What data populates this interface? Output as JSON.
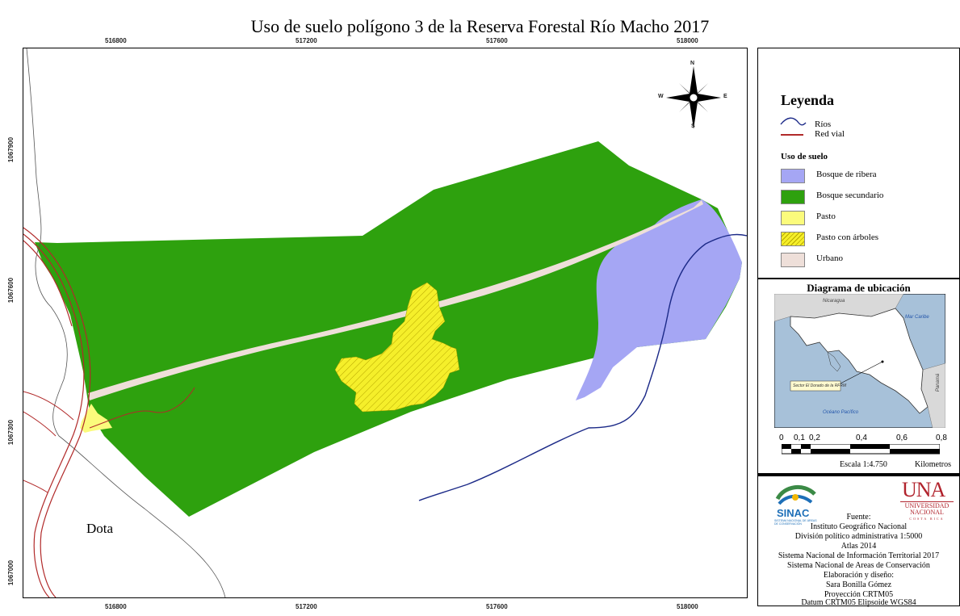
{
  "title": "Uso de suelo polígono 3 de la Reserva Forestal Río Macho 2017",
  "axes": {
    "x_ticks": [
      "516800",
      "517200",
      "517600",
      "518000"
    ],
    "y_ticks": [
      "1067900",
      "1067600",
      "1067300",
      "1067000"
    ]
  },
  "compass": {
    "n": "N",
    "s": "S",
    "e": "E",
    "w": "W"
  },
  "map_label": "Dota",
  "colors": {
    "bosque_de_ribera": "#a5a6f4",
    "bosque_secundario": "#2ea10e",
    "pasto": "#fbfb7c",
    "pasto_con_arboles": "#f5ef2a",
    "urbano": "#eedfd9",
    "rios": "#1c2a88",
    "red_vial": "#b12a2a"
  },
  "legend": {
    "title": "Leyenda",
    "rios": "Ríos",
    "red_vial": "Red vial",
    "uso_title": "Uso de suelo",
    "items": [
      {
        "label": "Bosque de ribera",
        "color": "#a5a6f4"
      },
      {
        "label": "Bosque secundario",
        "color": "#2ea10e"
      },
      {
        "label": "Pasto",
        "color": "#fbfb7c"
      },
      {
        "label": "Pasto con árboles",
        "color": "#f5ef2a"
      },
      {
        "label": "Urbano",
        "color": "#eedfd9"
      }
    ]
  },
  "location_diagram": {
    "title": "Diagrama de ubicación",
    "nicaragua": "Nicaragua",
    "mar_caribe": "Mar Caribe",
    "oceano_pacifico": "Océano Pacífico",
    "panama": "Panamá",
    "inset_label": "Sector El Dorado de la RFRM"
  },
  "scale": {
    "numbers": [
      "0",
      "0,1",
      "0,2",
      "0,4",
      "0,6",
      "0,8"
    ],
    "text": "Escala 1:4.750",
    "unit": "Kilometros"
  },
  "credits": {
    "sinac": "SINAC",
    "sinac_sub": "SISTEMA NACIONAL DE ÁREAS DE CONSERVACIÓN",
    "una": "UNA",
    "una_sub1": "UNIVERSIDAD",
    "una_sub2": "NACIONAL",
    "una_sub3": "COSTA RICA",
    "lines": [
      "Fuente:",
      "Instituto Geográfico Nacional",
      "División político administrativa 1:5000",
      "Atlas 2014",
      "Sistema Nacional de Información Territorial 2017",
      "Sistema Nacional de Areas de Conservación",
      "Elaboración y diseño:",
      "Sara Bonilla Gómez",
      "Proyección CRTM05",
      "Datum CRTM05 Elipsoide WGS84"
    ]
  }
}
